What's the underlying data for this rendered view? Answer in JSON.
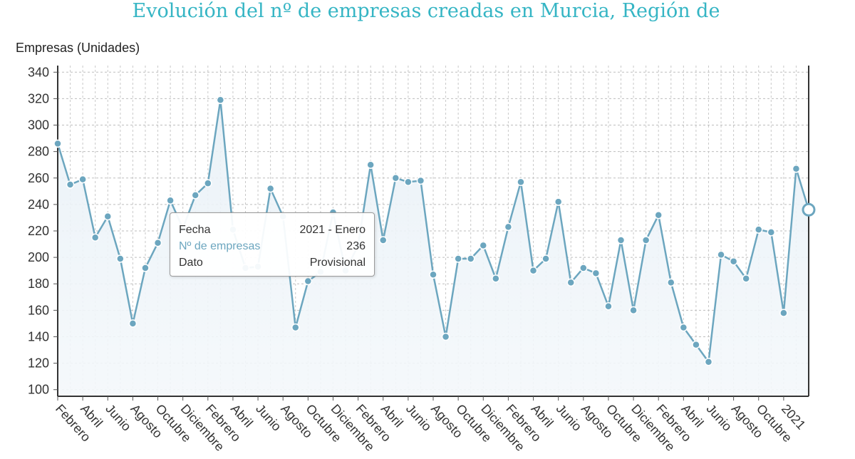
{
  "chart_data": {
    "type": "line",
    "title": "Evolución del nº de empresas creadas en Murcia, Región de",
    "ylabel": "Empresas (Unidades)",
    "ylim": [
      95,
      345
    ],
    "yticks": [
      100,
      120,
      140,
      160,
      180,
      200,
      220,
      240,
      260,
      280,
      300,
      320,
      340
    ],
    "grid": true,
    "x_tick_labels": [
      "Febrero",
      "Abril",
      "Junio",
      "Agosto",
      "Octubre",
      "Diciembre",
      "Febrero",
      "Abril",
      "Junio",
      "Agosto",
      "Octubre",
      "Diciembre",
      "Febrero",
      "Abril",
      "Junio",
      "Agosto",
      "Octubre",
      "Diciembre",
      "Febrero",
      "Abril",
      "Junio",
      "Agosto",
      "Octubre",
      "Diciembre",
      "Febrero",
      "Abril",
      "Junio",
      "Agosto",
      "Octubre",
      "2021"
    ],
    "series": [
      {
        "name": "Nº de empresas",
        "color": "#6ca6bf",
        "values": [
          286,
          255,
          259,
          215,
          231,
          199,
          150,
          192,
          211,
          243,
          222,
          247,
          256,
          319,
          221,
          192,
          193,
          252,
          231,
          147,
          182,
          189,
          234,
          190,
          209,
          270,
          213,
          260,
          257,
          258,
          187,
          140,
          199,
          199,
          209,
          184,
          223,
          257,
          190,
          199,
          242,
          181,
          192,
          188,
          163,
          213,
          160,
          213,
          232,
          181,
          147,
          134,
          121,
          202,
          197,
          184,
          221,
          219,
          158,
          267,
          236
        ]
      }
    ]
  },
  "tooltip": {
    "rows": [
      {
        "label": "Fecha",
        "value": "2021 - Enero"
      },
      {
        "label": "Nº de empresas",
        "value": "236"
      },
      {
        "label": "Dato",
        "value": "Provisional"
      }
    ]
  }
}
